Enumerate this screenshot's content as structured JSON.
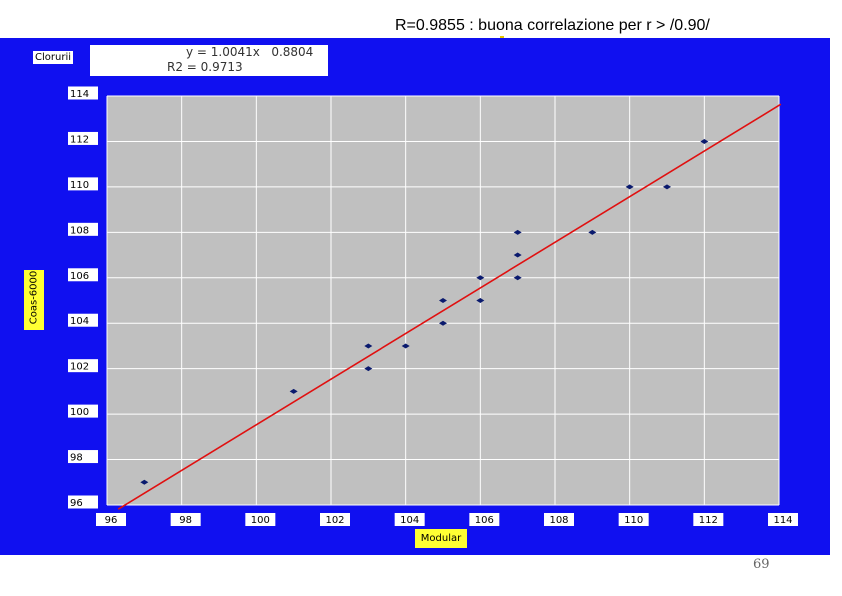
{
  "slide": {
    "title": "R=0.9855 : buona correlazione per r > /0.90/",
    "page_number": "69"
  },
  "colors": {
    "panel_background": "#1010f0",
    "plot_background": "#c0c0c0",
    "gridline": "#ffffff",
    "point": "#0a1a6e",
    "trendline": "#e01010",
    "axis_label_background": "#ffff33"
  },
  "chart_data": {
    "type": "scatter",
    "series_label": "Clorurii",
    "equation": "y = 1.0041x   0.8804",
    "r2_text": "R2 = 0.9713",
    "xlabel": "Modular",
    "ylabel": "Coas-6000",
    "xlim": [
      96,
      114
    ],
    "ylim": [
      96,
      114
    ],
    "xticks": [
      "96",
      "98",
      "100",
      "102",
      "104",
      "106",
      "108",
      "110",
      "112",
      "114"
    ],
    "yticks": [
      "96",
      "98",
      "100",
      "102",
      "104",
      "106",
      "108",
      "110",
      "112",
      "114"
    ],
    "grid": true,
    "points": [
      {
        "x": 97,
        "y": 97
      },
      {
        "x": 101,
        "y": 101
      },
      {
        "x": 103,
        "y": 103
      },
      {
        "x": 103,
        "y": 102
      },
      {
        "x": 104,
        "y": 103
      },
      {
        "x": 105,
        "y": 105
      },
      {
        "x": 105,
        "y": 104
      },
      {
        "x": 106,
        "y": 106
      },
      {
        "x": 106,
        "y": 105
      },
      {
        "x": 107,
        "y": 108
      },
      {
        "x": 107,
        "y": 107
      },
      {
        "x": 107,
        "y": 106
      },
      {
        "x": 109,
        "y": 108
      },
      {
        "x": 110,
        "y": 110
      },
      {
        "x": 111,
        "y": 110
      },
      {
        "x": 112,
        "y": 112
      }
    ],
    "trendline": {
      "slope": 1.0041,
      "intercept": -0.8804
    }
  }
}
